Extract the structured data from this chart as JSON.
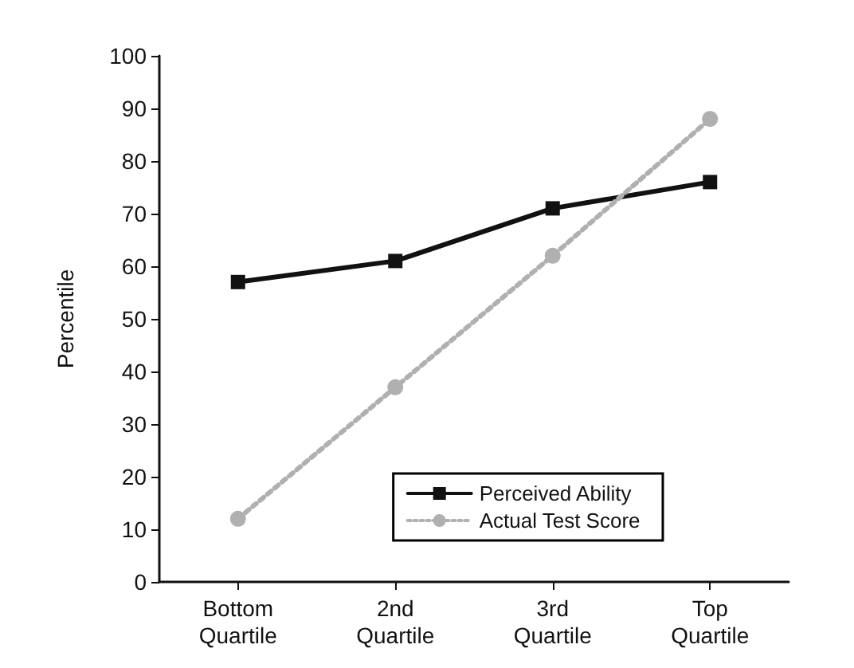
{
  "chart_data": {
    "type": "line",
    "ylabel": "Percentile",
    "categories": [
      "Bottom Quartile",
      "2nd Quartile",
      "3rd Quartile",
      "Top Quartile"
    ],
    "series": [
      {
        "name": "Perceived Ability",
        "color": "#111111",
        "values": [
          57,
          61,
          71,
          76
        ],
        "marker": "square",
        "line_style": "solid"
      },
      {
        "name": "Actual Test Score",
        "color": "#b0b0b0",
        "values": [
          12,
          37,
          62,
          88
        ],
        "marker": "circle",
        "line_style": "dotted"
      }
    ],
    "ylim": [
      0,
      100
    ],
    "yticks": [
      0,
      10,
      20,
      30,
      40,
      50,
      60,
      70,
      80,
      90,
      100
    ],
    "grid": false,
    "legend": "bottom right"
  }
}
